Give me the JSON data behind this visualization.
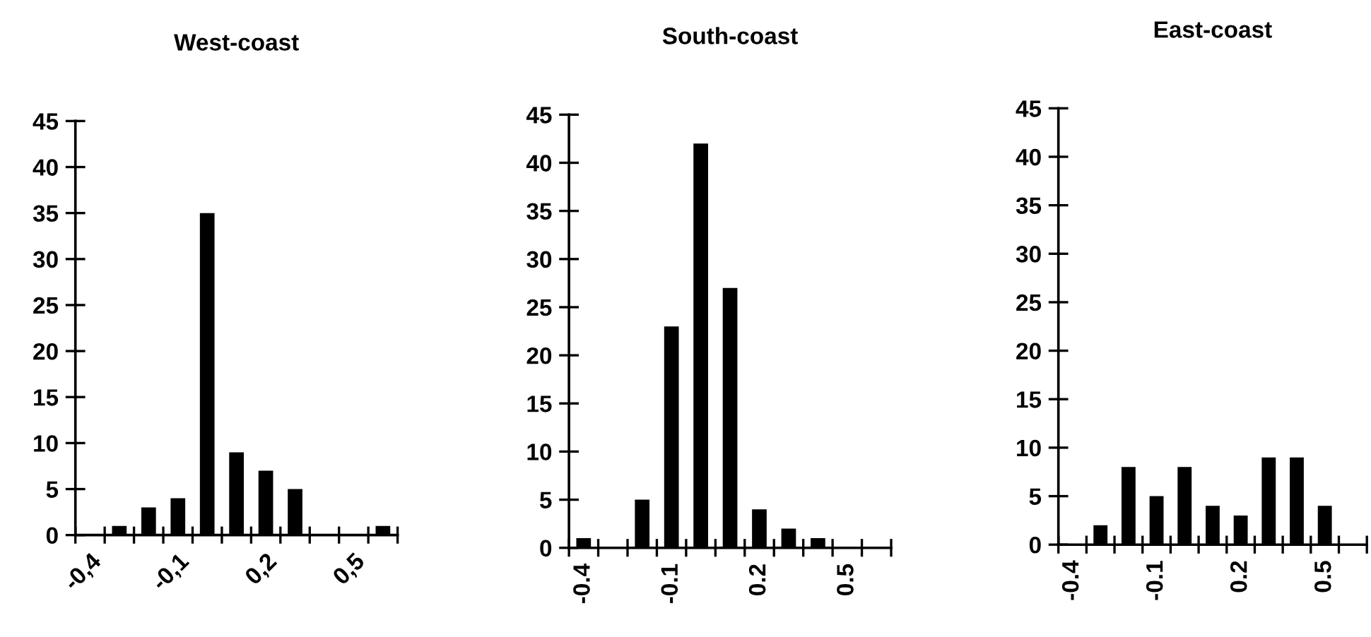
{
  "chart_data": [
    {
      "type": "bar",
      "title": "West-coast",
      "categories": [
        "-0,4",
        null,
        null,
        "-0,1",
        null,
        null,
        "0,2",
        null,
        null,
        "0,5",
        null
      ],
      "values": [
        0,
        1,
        3,
        4,
        35,
        9,
        7,
        5,
        0,
        0,
        1
      ],
      "color": "#000000",
      "ylim": [
        0,
        45
      ],
      "yticks": [
        0,
        5,
        10,
        15,
        20,
        25,
        30,
        35,
        40,
        45
      ],
      "grid": false
    },
    {
      "type": "bar",
      "title": "South-coast",
      "categories": [
        "-0.4",
        null,
        null,
        "-0.1",
        null,
        null,
        "0.2",
        null,
        null,
        "0.5",
        null
      ],
      "values": [
        1,
        0,
        5,
        23,
        42,
        27,
        4,
        2,
        1,
        0,
        0
      ],
      "color": "#000000",
      "ylim": [
        0,
        45
      ],
      "yticks": [
        0,
        5,
        10,
        15,
        20,
        25,
        30,
        35,
        40,
        45
      ],
      "grid": false
    },
    {
      "type": "bar",
      "title": "East-coast",
      "categories": [
        "-0.4",
        null,
        null,
        "-0.1",
        null,
        null,
        "0.2",
        null,
        null,
        "0.5",
        null
      ],
      "values": [
        0,
        2,
        8,
        5,
        8,
        4,
        3,
        9,
        9,
        4,
        0
      ],
      "color": "#000000",
      "ylim": [
        0,
        45
      ],
      "yticks": [
        0,
        5,
        10,
        15,
        20,
        25,
        30,
        35,
        40,
        45
      ],
      "grid": false
    }
  ]
}
